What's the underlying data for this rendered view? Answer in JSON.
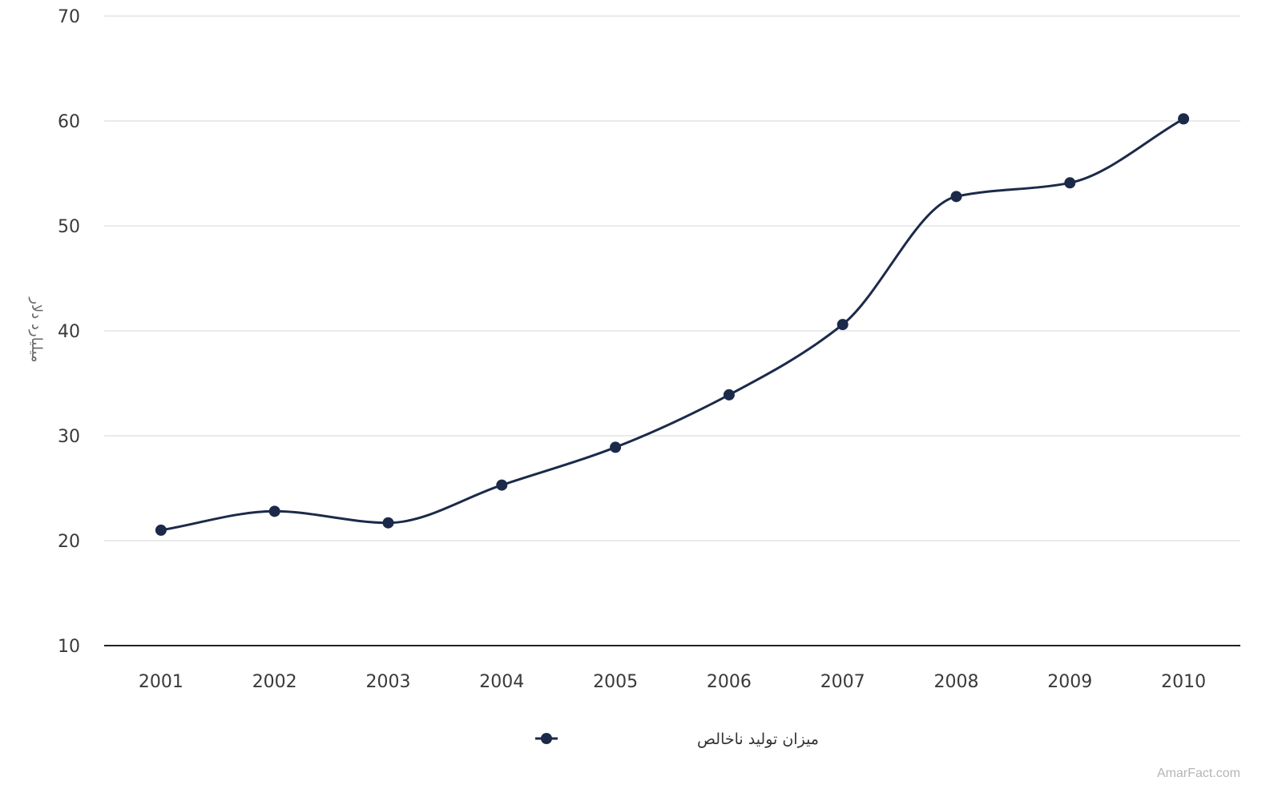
{
  "chart_data": {
    "type": "line",
    "x": [
      "2001",
      "2002",
      "2003",
      "2004",
      "2005",
      "2006",
      "2007",
      "2008",
      "2009",
      "2010"
    ],
    "series": [
      {
        "name": "میزان تولید ناخالص",
        "values": [
          21.0,
          22.8,
          21.7,
          25.3,
          28.9,
          33.9,
          40.6,
          52.8,
          54.1,
          60.2
        ],
        "color": "#1b2a4a"
      }
    ],
    "ylabel": "میلیارد دلار",
    "xlabel": "",
    "title": "",
    "ylim": [
      10,
      70
    ],
    "yticks": [
      "10",
      "20",
      "30",
      "40",
      "50",
      "60",
      "70"
    ],
    "grid": true,
    "legend": "bottom-center",
    "smooth": true
  },
  "watermark": "AmarFact.com"
}
